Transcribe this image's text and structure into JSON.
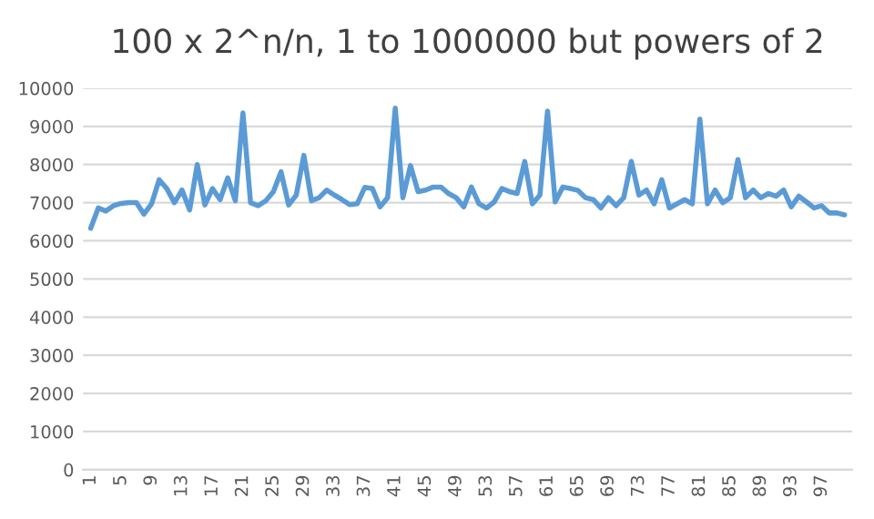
{
  "chart_data": {
    "type": "line",
    "title": "100 x 2^n/n, 1 to 1000000 but powers of 2",
    "categories": [
      "1",
      null,
      null,
      null,
      "5",
      null,
      null,
      null,
      "9",
      null,
      null,
      null,
      "13",
      null,
      null,
      null,
      "17",
      null,
      null,
      null,
      "21",
      null,
      null,
      null,
      "25",
      null,
      null,
      null,
      "29",
      null,
      null,
      null,
      "33",
      null,
      null,
      null,
      "37",
      null,
      null,
      null,
      "41",
      null,
      null,
      null,
      "45",
      null,
      null,
      null,
      "49",
      null,
      null,
      null,
      "53",
      null,
      null,
      null,
      "57",
      null,
      null,
      null,
      "61",
      null,
      null,
      null,
      "65",
      null,
      null,
      null,
      "69",
      null,
      null,
      null,
      "73",
      null,
      null,
      null,
      "77",
      null,
      null,
      null,
      "81",
      null,
      null,
      null,
      "85",
      null,
      null,
      null,
      "89",
      null,
      null,
      null,
      "93",
      null,
      null,
      null,
      "97",
      null,
      null,
      null
    ],
    "series": [
      {
        "color": "#5b9bd5",
        "values": [
          6330,
          6860,
          6780,
          6920,
          6980,
          7000,
          7000,
          6700,
          6970,
          7600,
          7370,
          7000,
          7330,
          6810,
          8000,
          6940,
          7370,
          7080,
          7650,
          7050,
          9350,
          7000,
          6920,
          7050,
          7290,
          7810,
          6940,
          7200,
          8240,
          7050,
          7130,
          7330,
          7200,
          7080,
          6950,
          6970,
          7400,
          7370,
          6890,
          7130,
          9480,
          7130,
          7970,
          7290,
          7330,
          7410,
          7410,
          7240,
          7130,
          6890,
          7410,
          6970,
          6860,
          7020,
          7370,
          7290,
          7240,
          8080,
          6970,
          7200,
          9400,
          7020,
          7410,
          7370,
          7320,
          7130,
          7080,
          6860,
          7130,
          6920,
          7130,
          8080,
          7200,
          7330,
          6970,
          7600,
          6860,
          6970,
          7080,
          6970,
          9190,
          6970,
          7330,
          7000,
          7130,
          8130,
          7130,
          7330,
          7130,
          7240,
          7170,
          7330,
          6890,
          7170,
          7020,
          6860,
          6920,
          6730,
          6730,
          6680
        ]
      }
    ],
    "ylim": [
      0,
      10000
    ],
    "yticks": [
      0,
      1000,
      2000,
      3000,
      4000,
      5000,
      6000,
      7000,
      8000,
      9000,
      10000
    ],
    "grid": "y",
    "marker": "none",
    "line_style": "solid"
  }
}
